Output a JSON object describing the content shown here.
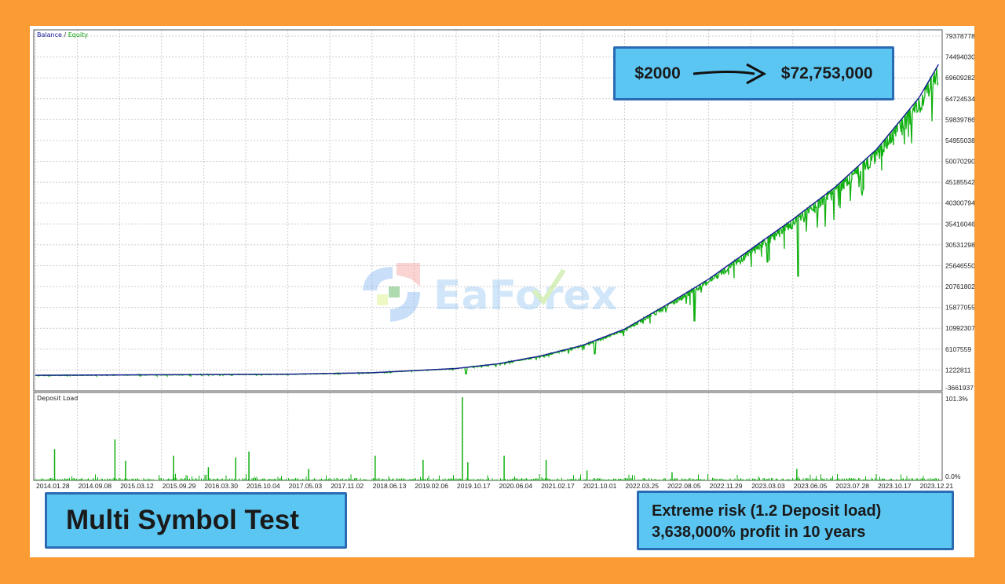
{
  "legend": {
    "balance": "Balance",
    "separator": " / ",
    "equity": "Equity"
  },
  "colors": {
    "background": "#fb9b33",
    "balance": "#1a1a9a",
    "equity": "#10b010",
    "deposit_load": "#10b010",
    "callout_fill": "#5cc6f3",
    "callout_border": "#2a6bb3"
  },
  "watermark": "EaForex",
  "callouts": {
    "top": {
      "from": "$2000",
      "to": "$72,753,000",
      "arrow": "right-arrow-icon"
    },
    "left": "Multi Symbol Test",
    "right_line1": "Extreme risk (1.2 Deposit load)",
    "right_line2": "3,638,000% profit in 10 years"
  },
  "chart_data": [
    {
      "type": "line",
      "legend_placement": "top-left",
      "grid": true,
      "y_ticks": [
        "79378778",
        "74494030",
        "69609282",
        "64724534",
        "59839786",
        "54955038",
        "50070290",
        "45185542",
        "40300794",
        "35416046",
        "30531298",
        "25646550",
        "20761802",
        "15877055",
        "10992307",
        "6107559",
        "1222811",
        "-3661937"
      ],
      "ylim": [
        -3661937,
        79378778
      ],
      "x_ticks": [
        "2014.01.28",
        "2014.09.08",
        "2015.03.12",
        "2015.09.29",
        "2016.03.30",
        "2016.10.04",
        "2017.05.03",
        "2017.11.02",
        "2018.06.13",
        "2019.02.06",
        "2019.10.17",
        "2020.06.04",
        "2021.02.17",
        "2021.10.01",
        "2022.03.25",
        "2022.08.05",
        "2022.11.29",
        "2023.03.03",
        "2023.06.05",
        "2023.07.28",
        "2023.10.17",
        "2023.12.21"
      ],
      "series": [
        {
          "name": "Balance",
          "x": [
            "2014.01.28",
            "2017.05.03",
            "2018.06.13",
            "2019.10.17",
            "2020.06.04",
            "2021.02.17",
            "2021.10.01",
            "2022.03.25",
            "2022.08.05",
            "2022.11.29",
            "2023.03.03",
            "2023.06.05",
            "2023.07.28",
            "2023.10.17",
            "2023.12.21",
            "2024.01.20"
          ],
          "y": [
            2000,
            250000,
            600000,
            1600000,
            2700000,
            4500000,
            7000000,
            10800000,
            16500000,
            22500000,
            29500000,
            36500000,
            44000000,
            53000000,
            65000000,
            72753000
          ]
        },
        {
          "name": "Equity",
          "drawdowns": [
            {
              "x": "2019.12.10",
              "y": 300000
            },
            {
              "x": "2020.05.20",
              "y": 2100000
            },
            {
              "x": "2021.11.20",
              "y": 5000000
            },
            {
              "x": "2022.10.20",
              "y": 12600000
            },
            {
              "x": "2023.04.10",
              "y": 26500000
            },
            {
              "x": "2023.06.12",
              "y": 23200000
            },
            {
              "x": "2023.09.20",
              "y": 43400000
            },
            {
              "x": "2023.09.01",
              "y": 47000000
            },
            {
              "x": "2024.01.10",
              "y": 66800000
            }
          ]
        }
      ]
    },
    {
      "type": "bar",
      "title": "Deposit Load",
      "y_ticks": [
        "101.3%",
        "0.0%"
      ],
      "ylim": [
        0,
        101.3
      ],
      "spikes": [
        {
          "x": "2014.05.10",
          "y": 38
        },
        {
          "x": "2015.02.20",
          "y": 50
        },
        {
          "x": "2015.04.10",
          "y": 24
        },
        {
          "x": "2015.11.20",
          "y": 30
        },
        {
          "x": "2016.04.20",
          "y": 16
        },
        {
          "x": "2016.08.20",
          "y": 28
        },
        {
          "x": "2016.10.20",
          "y": 35
        },
        {
          "x": "2017.08.01",
          "y": 14
        },
        {
          "x": "2018.07.01",
          "y": 30
        },
        {
          "x": "2019.04.01",
          "y": 25
        },
        {
          "x": "2019.11.20",
          "y": 101.3
        },
        {
          "x": "2019.12.20",
          "y": 22
        },
        {
          "x": "2020.07.10",
          "y": 30
        },
        {
          "x": "2021.03.20",
          "y": 25
        },
        {
          "x": "2021.10.20",
          "y": 12
        },
        {
          "x": "2022.08.20",
          "y": 10
        },
        {
          "x": "2023.06.10",
          "y": 14
        }
      ]
    }
  ]
}
